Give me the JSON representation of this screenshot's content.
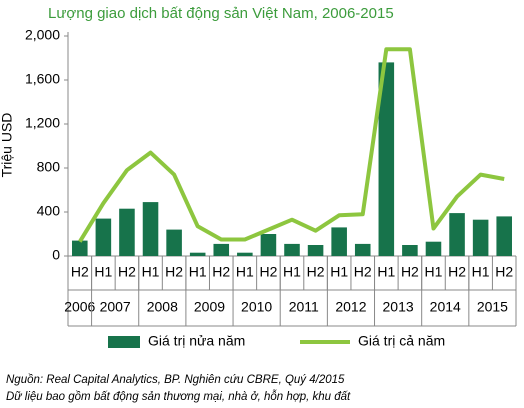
{
  "chart_data": {
    "type": "bar-line",
    "title": "Lượng giao dịch bất động sản Việt Nam, 2006-2015",
    "y_label": "Triệu USD",
    "groups": [
      {
        "name": "2006",
        "categories": [
          "H2"
        ]
      },
      {
        "name": "2007",
        "categories": [
          "H1",
          "H2"
        ]
      },
      {
        "name": "2008",
        "categories": [
          "H1",
          "H2"
        ]
      },
      {
        "name": "2009",
        "categories": [
          "H1",
          "H2"
        ]
      },
      {
        "name": "2010",
        "categories": [
          "H1",
          "H2"
        ]
      },
      {
        "name": "2011",
        "categories": [
          "H1",
          "H2"
        ]
      },
      {
        "name": "2012",
        "categories": [
          "H1",
          "H2"
        ]
      },
      {
        "name": "2013",
        "categories": [
          "H1",
          "H2"
        ]
      },
      {
        "name": "2014",
        "categories": [
          "H1",
          "H2"
        ]
      },
      {
        "name": "2015",
        "categories": [
          "H1",
          "H2"
        ]
      }
    ],
    "series": [
      {
        "name": "Giá trị nửa năm",
        "type": "bar",
        "color": "#17734b",
        "values": [
          140,
          340,
          430,
          490,
          240,
          30,
          110,
          30,
          200,
          110,
          100,
          260,
          110,
          1760,
          100,
          130,
          390,
          330,
          360
        ]
      },
      {
        "name": "Giá trị cả năm",
        "type": "line",
        "color": "#8dc63f",
        "values": [
          130,
          480,
          780,
          940,
          740,
          270,
          150,
          150,
          240,
          330,
          230,
          370,
          380,
          1880,
          1880,
          250,
          540,
          740,
          700
        ]
      }
    ],
    "ylim": [
      0,
      2000
    ],
    "yticks": [
      0,
      400,
      800,
      {
        "value": 1200,
        "label": "1,200"
      },
      {
        "value": 1600,
        "label": "1,600"
      },
      {
        "value": 2000,
        "label": "2,000"
      }
    ],
    "notes": [
      "Nguồn: Real Capital Analytics, BP. Nghiên cứu CBRE, Quý 4/2015",
      "Dữ liệu bao gồm bất động sản thương mại, nhà ở, hỗn hợp, khu đất"
    ]
  }
}
